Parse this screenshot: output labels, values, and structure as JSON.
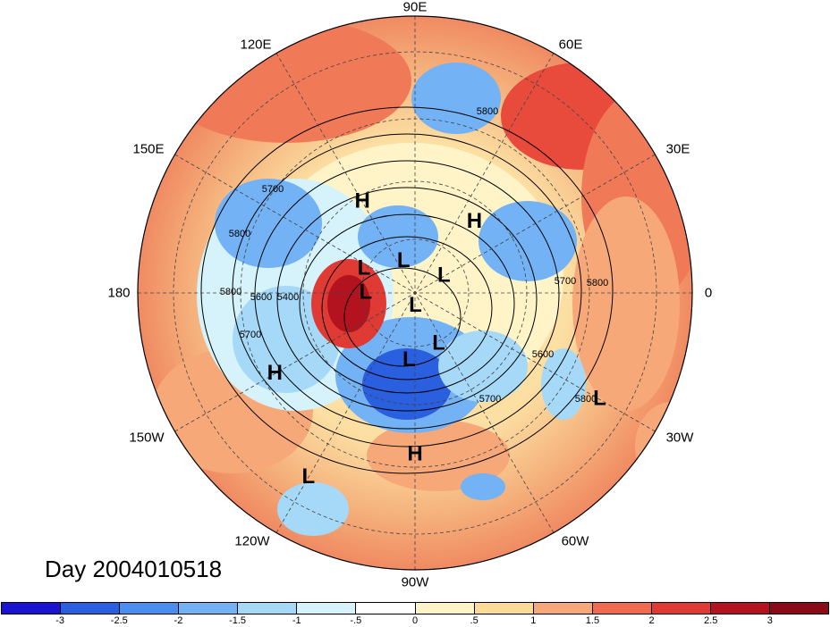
{
  "title": "Day 2004010518",
  "lon_labels": [
    {
      "text": "90E"
    },
    {
      "text": "60E"
    },
    {
      "text": "120E"
    },
    {
      "text": "150E"
    },
    {
      "text": "30E"
    },
    {
      "text": "180"
    },
    {
      "text": "0"
    },
    {
      "text": "150W"
    },
    {
      "text": "30W"
    },
    {
      "text": "120W"
    },
    {
      "text": "60W"
    },
    {
      "text": "90W"
    }
  ],
  "pressure_centers": [
    {
      "type": "H",
      "lon": 120,
      "lat": 45
    },
    {
      "type": "H",
      "lon": 50,
      "lat": 50
    },
    {
      "type": "L",
      "lon": 155,
      "lat": 65
    },
    {
      "type": "L",
      "lon": 110,
      "lat": 75
    },
    {
      "type": "L",
      "lon": 30,
      "lat": 75
    },
    {
      "type": "L",
      "lon": 180,
      "lat": 68
    },
    {
      "type": "L",
      "lon": -88,
      "lat": 84
    },
    {
      "type": "L",
      "lon": -95,
      "lat": 60
    },
    {
      "type": "L",
      "lon": -65,
      "lat": 65
    },
    {
      "type": "H",
      "lon": -150,
      "lat": 25
    },
    {
      "type": "L",
      "lon": -30,
      "lat": 10
    },
    {
      "type": "H",
      "lon": -90,
      "lat": 25
    },
    {
      "type": "L",
      "lon": -120,
      "lat": 10
    }
  ],
  "contour_labels": [
    "5800",
    "5700",
    "5800",
    "5600",
    "5400",
    "5800",
    "5700",
    "5700",
    "5800",
    "5600",
    "5700",
    "5800"
  ],
  "colorbar": {
    "ticks": [
      "-3",
      "-2.5",
      "-2",
      "-1.5",
      "-1",
      "-.5",
      "0",
      ".5",
      "1",
      "1.5",
      "2",
      "2.5",
      "3"
    ],
    "colors": [
      "#1a14d2",
      "#2a5fe0",
      "#4a8ff0",
      "#72b2f5",
      "#a6d9f7",
      "#d6f3fb",
      "#ffffff",
      "#fff4c8",
      "#fcdb98",
      "#f7a878",
      "#f06a50",
      "#e03a35",
      "#b3131e",
      "#8a0a18"
    ]
  }
}
